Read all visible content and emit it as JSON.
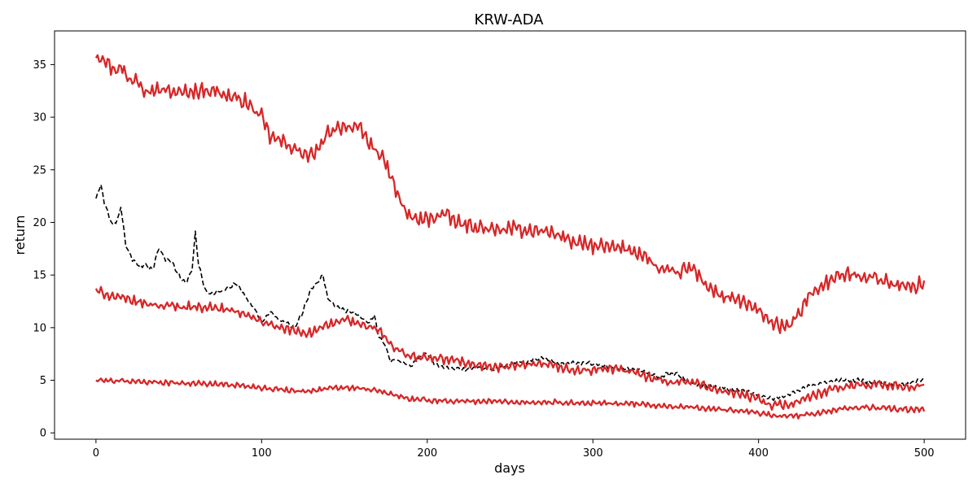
{
  "chart_data": {
    "type": "line",
    "title": "KRW-ADA",
    "xlabel": "days",
    "ylabel": "return",
    "xlim": [
      -25,
      525
    ],
    "ylim": [
      -0.6,
      38.2
    ],
    "xticks": [
      0,
      100,
      200,
      300,
      400,
      500
    ],
    "yticks": [
      0,
      5,
      10,
      15,
      20,
      25,
      30,
      35
    ],
    "grid": false,
    "legend": "none",
    "colors": {
      "red": "#d62728",
      "black": "#000000"
    },
    "series": [
      {
        "style": "solid",
        "color": "#d62728",
        "x": [
          0,
          5,
          10,
          15,
          20,
          25,
          30,
          40,
          50,
          60,
          70,
          80,
          90,
          100,
          105,
          110,
          115,
          120,
          125,
          130,
          135,
          140,
          145,
          150,
          155,
          160,
          165,
          170,
          175,
          180,
          185,
          190,
          195,
          200,
          210,
          220,
          230,
          240,
          250,
          260,
          270,
          280,
          290,
          300,
          310,
          320,
          330,
          340,
          350,
          360,
          370,
          380,
          390,
          400,
          405,
          410,
          415,
          420,
          425,
          430,
          440,
          450,
          460,
          470,
          480,
          490,
          500
        ],
        "y": [
          35.8,
          35.7,
          34.5,
          34.8,
          33.5,
          33.8,
          32.5,
          32.6,
          32.3,
          32.5,
          32.6,
          32.0,
          31.5,
          30.0,
          28.2,
          27.8,
          27.5,
          27.0,
          26.5,
          26.3,
          27.0,
          28.5,
          29.0,
          29.2,
          29.0,
          28.8,
          27.5,
          26.8,
          25.5,
          23.5,
          21.5,
          20.5,
          20.2,
          20.3,
          20.8,
          19.8,
          19.6,
          19.2,
          19.4,
          19.3,
          19.2,
          18.8,
          18.0,
          17.8,
          17.6,
          17.5,
          17.0,
          15.5,
          15.2,
          15.7,
          13.8,
          12.8,
          12.5,
          11.5,
          11.0,
          10.2,
          10.0,
          10.3,
          11.5,
          13.0,
          14.2,
          15.0,
          15.0,
          14.8,
          14.2,
          13.8,
          14.2
        ],
        "noise": 0.85
      },
      {
        "style": "dashed",
        "color": "#000000",
        "x": [
          0,
          3,
          5,
          8,
          10,
          13,
          15,
          18,
          22,
          26,
          30,
          34,
          38,
          42,
          46,
          50,
          54,
          58,
          60,
          62,
          66,
          70,
          75,
          80,
          85,
          90,
          95,
          100,
          105,
          110,
          115,
          120,
          125,
          130,
          135,
          137,
          140,
          145,
          150,
          155,
          160,
          165,
          168,
          170,
          175,
          178,
          180,
          185,
          190,
          195,
          200,
          205,
          210,
          220,
          230,
          240,
          250,
          260,
          270,
          280,
          290,
          300,
          310,
          320,
          330,
          340,
          345,
          350,
          360,
          370,
          380,
          390,
          400,
          410,
          420,
          430,
          440,
          450,
          460,
          470,
          480,
          490,
          500
        ],
        "y": [
          22.2,
          23.6,
          22.0,
          20.5,
          19.8,
          20.2,
          21.5,
          17.8,
          16.5,
          15.8,
          16.0,
          15.5,
          17.5,
          16.5,
          16.2,
          15.0,
          14.2,
          15.5,
          19.0,
          16.0,
          13.5,
          13.2,
          13.4,
          13.8,
          14.2,
          13.0,
          12.0,
          10.5,
          11.5,
          10.8,
          10.5,
          10.0,
          11.5,
          13.8,
          14.5,
          15.0,
          12.8,
          12.0,
          11.7,
          11.4,
          11.0,
          10.5,
          11.3,
          9.5,
          8.2,
          6.8,
          7.0,
          6.7,
          6.3,
          7.2,
          7.6,
          6.5,
          6.3,
          6.0,
          6.2,
          6.0,
          6.6,
          6.8,
          7.2,
          6.5,
          6.7,
          6.6,
          6.2,
          6.1,
          5.8,
          5.3,
          5.6,
          5.6,
          4.7,
          4.4,
          4.2,
          4.0,
          3.6,
          3.2,
          3.8,
          4.4,
          4.8,
          5.0,
          5.0,
          4.8,
          4.6,
          4.6,
          5.2
        ],
        "noise": 0.25
      },
      {
        "style": "solid",
        "color": "#d62728",
        "x": [
          0,
          10,
          20,
          30,
          40,
          50,
          60,
          70,
          80,
          90,
          100,
          110,
          120,
          130,
          140,
          150,
          160,
          170,
          175,
          180,
          190,
          200,
          210,
          220,
          230,
          240,
          250,
          260,
          270,
          280,
          290,
          300,
          310,
          320,
          330,
          340,
          350,
          360,
          370,
          380,
          390,
          400,
          410,
          420,
          430,
          440,
          450,
          460,
          470,
          480,
          490,
          500
        ],
        "y": [
          13.5,
          13.0,
          12.6,
          12.3,
          12.1,
          12.0,
          12.0,
          11.9,
          11.7,
          11.3,
          10.5,
          10.0,
          9.7,
          9.5,
          10.2,
          10.8,
          10.3,
          9.8,
          9.0,
          8.0,
          7.3,
          7.1,
          7.0,
          6.8,
          6.5,
          6.2,
          6.3,
          6.4,
          6.5,
          6.2,
          5.9,
          6.0,
          6.1,
          5.9,
          5.5,
          5.1,
          4.8,
          4.9,
          4.3,
          4.0,
          3.6,
          3.2,
          2.6,
          2.8,
          3.3,
          3.9,
          4.3,
          4.6,
          4.6,
          4.5,
          4.3,
          4.5
        ],
        "noise": 0.55
      },
      {
        "style": "solid",
        "color": "#d62728",
        "x": [
          0,
          20,
          40,
          60,
          80,
          100,
          120,
          130,
          140,
          150,
          160,
          170,
          180,
          190,
          200,
          220,
          240,
          260,
          280,
          300,
          320,
          340,
          360,
          380,
          400,
          410,
          420,
          430,
          440,
          450,
          460,
          470,
          480,
          490,
          500
        ],
        "y": [
          5.0,
          4.9,
          4.8,
          4.7,
          4.6,
          4.3,
          4.0,
          4.0,
          4.2,
          4.3,
          4.2,
          4.0,
          3.6,
          3.2,
          3.1,
          3.0,
          3.0,
          2.9,
          2.9,
          2.8,
          2.8,
          2.6,
          2.4,
          2.2,
          1.9,
          1.6,
          1.6,
          1.7,
          2.0,
          2.3,
          2.4,
          2.4,
          2.3,
          2.2,
          2.2
        ],
        "noise": 0.3
      }
    ]
  }
}
